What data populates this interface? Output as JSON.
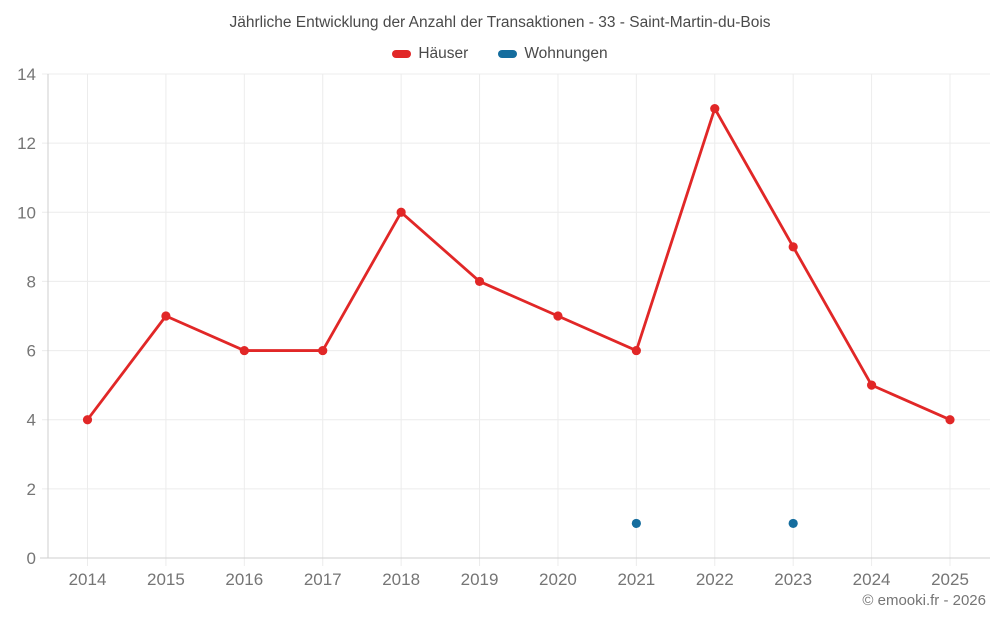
{
  "chart_data": {
    "type": "line",
    "title": "Jährliche Entwicklung der Anzahl der Transaktionen - 33 - Saint-Martin-du-Bois",
    "categories": [
      "2014",
      "2015",
      "2016",
      "2017",
      "2018",
      "2019",
      "2020",
      "2021",
      "2022",
      "2023",
      "2024",
      "2025"
    ],
    "series": [
      {
        "name": "Häuser",
        "color": "#e12727",
        "values": [
          4,
          7,
          6,
          6,
          10,
          8,
          7,
          6,
          13,
          9,
          5,
          4
        ]
      },
      {
        "name": "Wohnungen",
        "color": "#156d9e",
        "values": [
          null,
          null,
          null,
          null,
          null,
          null,
          null,
          1,
          null,
          1,
          null,
          null
        ]
      }
    ],
    "ylim": [
      0,
      14
    ],
    "ytick_step": 2,
    "grid": true,
    "legend_position": "top",
    "xlabel": "",
    "ylabel": "",
    "colors": {
      "gridline": "#ececec",
      "axis_line": "#cfcfcf",
      "tick_label": "#757575",
      "title_text": "#4a4a4a"
    }
  },
  "footer": {
    "copyright": "© emooki.fr - 2026"
  }
}
